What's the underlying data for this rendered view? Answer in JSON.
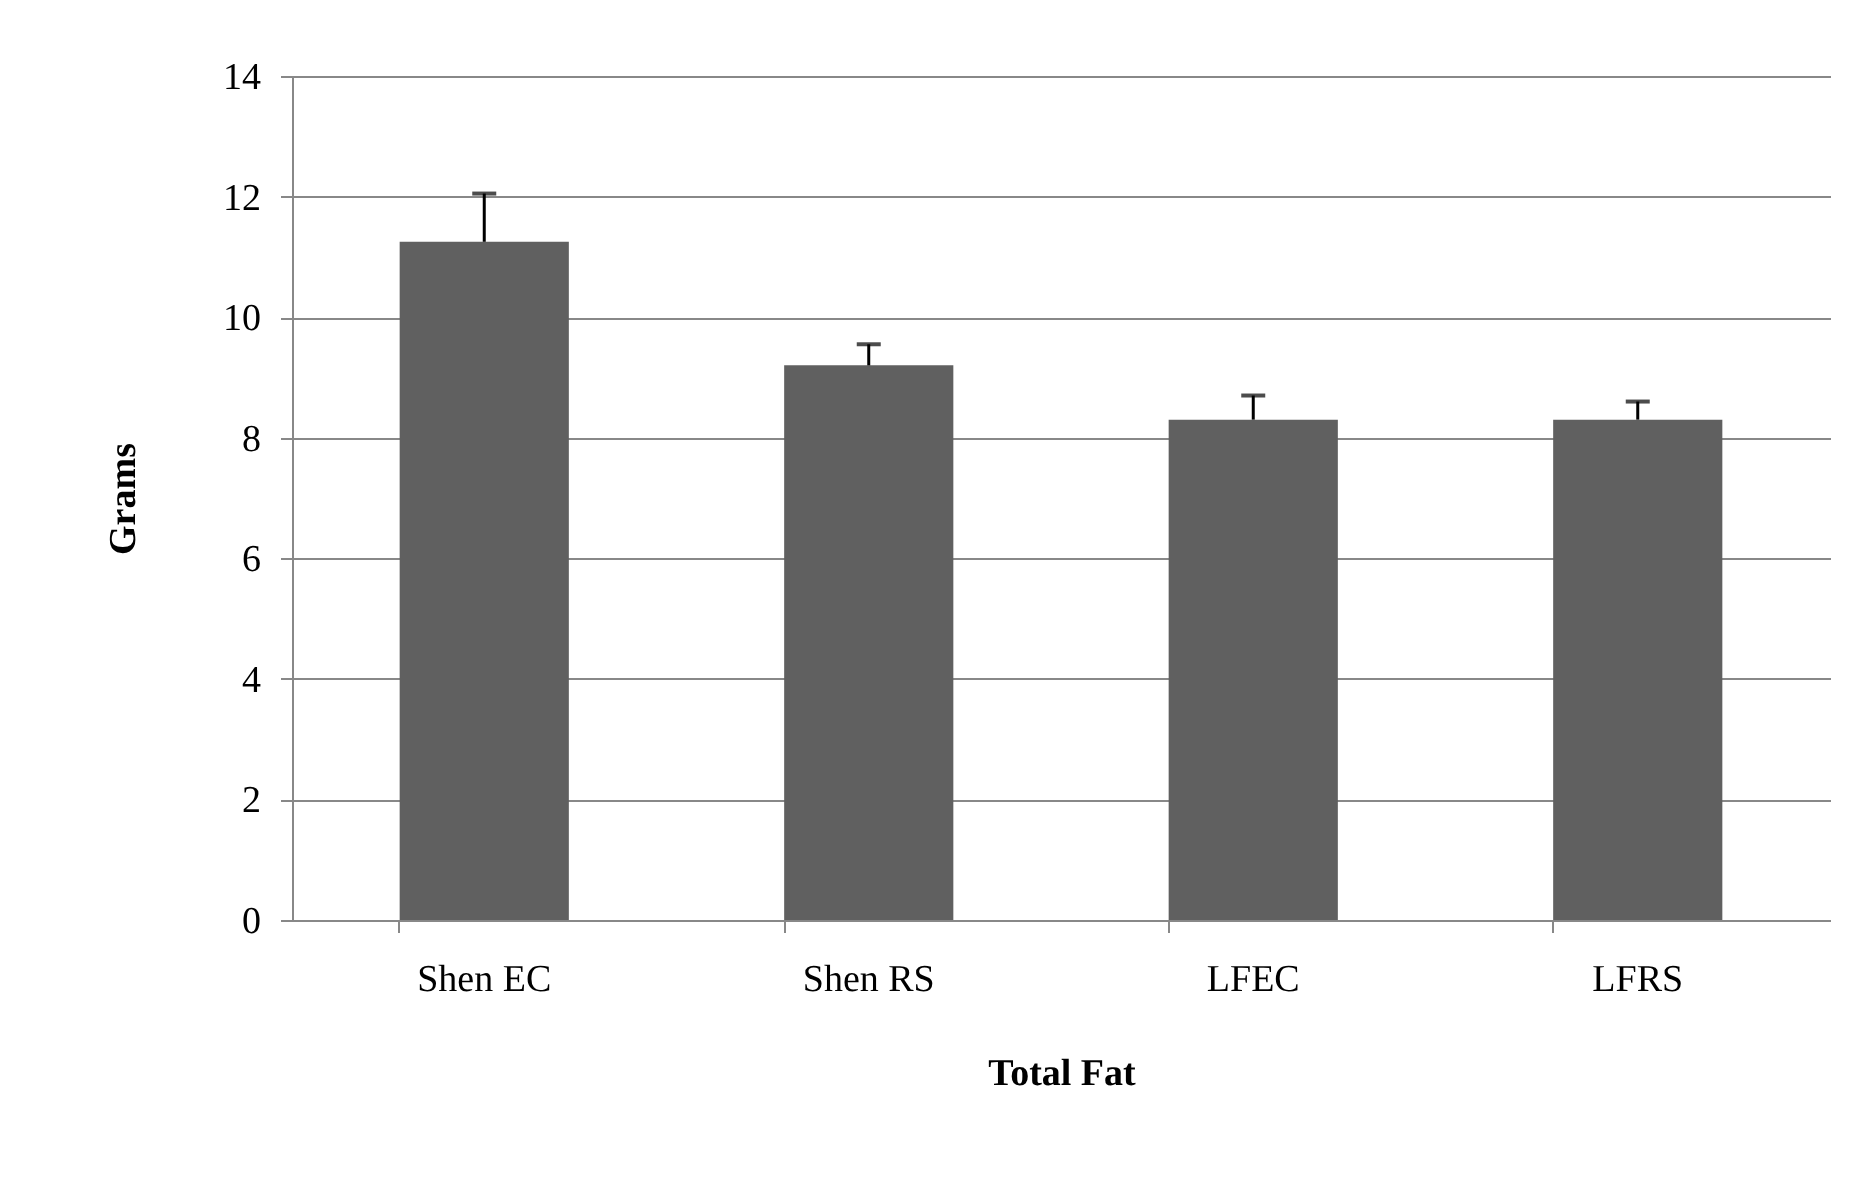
{
  "chart_data": {
    "type": "bar",
    "xlabel": "Total Fat",
    "ylabel": "Grams",
    "categories": [
      "Shen EC",
      "Shen RS",
      "LFEC",
      "LFRS"
    ],
    "values": [
      11.25,
      9.2,
      8.3,
      8.3
    ],
    "errors": [
      [
        11.25,
        12.05
      ],
      [
        9.2,
        9.55
      ],
      [
        8.3,
        8.7
      ],
      [
        8.3,
        8.6
      ]
    ],
    "color": "#606060",
    "ylim": [
      0,
      14
    ],
    "yticks": [
      0,
      2,
      4,
      6,
      8,
      10,
      12,
      14
    ],
    "grid": "y"
  }
}
